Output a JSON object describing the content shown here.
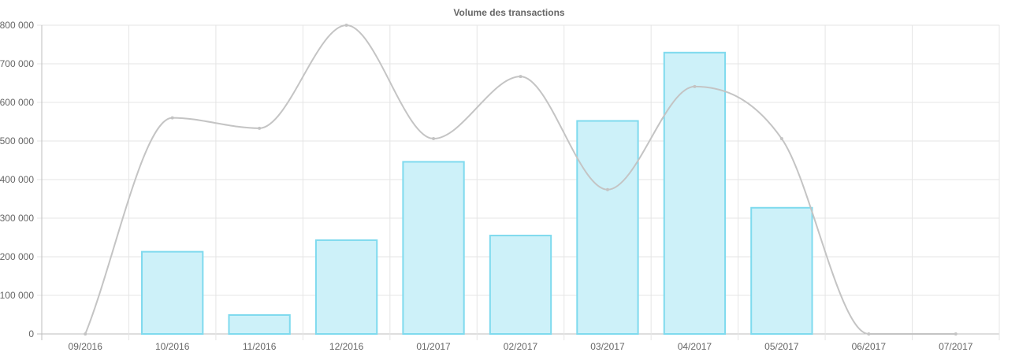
{
  "chart_data": {
    "type": "bar",
    "title": "Volume des transactions",
    "xlabel": "",
    "ylabel": "",
    "categories": [
      "09/2016",
      "10/2016",
      "11/2016",
      "12/2016",
      "01/2017",
      "02/2017",
      "03/2017",
      "04/2017",
      "05/2017",
      "06/2017",
      "07/2017"
    ],
    "ylim": [
      0,
      800000
    ],
    "yticks": [
      0,
      100000,
      200000,
      300000,
      400000,
      500000,
      600000,
      700000,
      800000
    ],
    "ytick_labels": [
      "0",
      "100 000",
      "200 000",
      "300 000",
      "400 000",
      "500 000",
      "600 000",
      "700 000",
      "800 000"
    ],
    "grid": true,
    "legend": "none",
    "series": [
      {
        "type": "bar",
        "values": [
          0,
          213000,
          49000,
          243000,
          446000,
          255000,
          552000,
          729000,
          327000,
          0,
          0
        ],
        "fill": "#cdf1f9",
        "stroke": "#7fdaee"
      },
      {
        "type": "line",
        "smooth": true,
        "values": [
          0,
          560000,
          533000,
          800000,
          506000,
          667000,
          374000,
          641000,
          506000,
          0,
          0
        ],
        "stroke": "#c4c4c4"
      }
    ]
  }
}
